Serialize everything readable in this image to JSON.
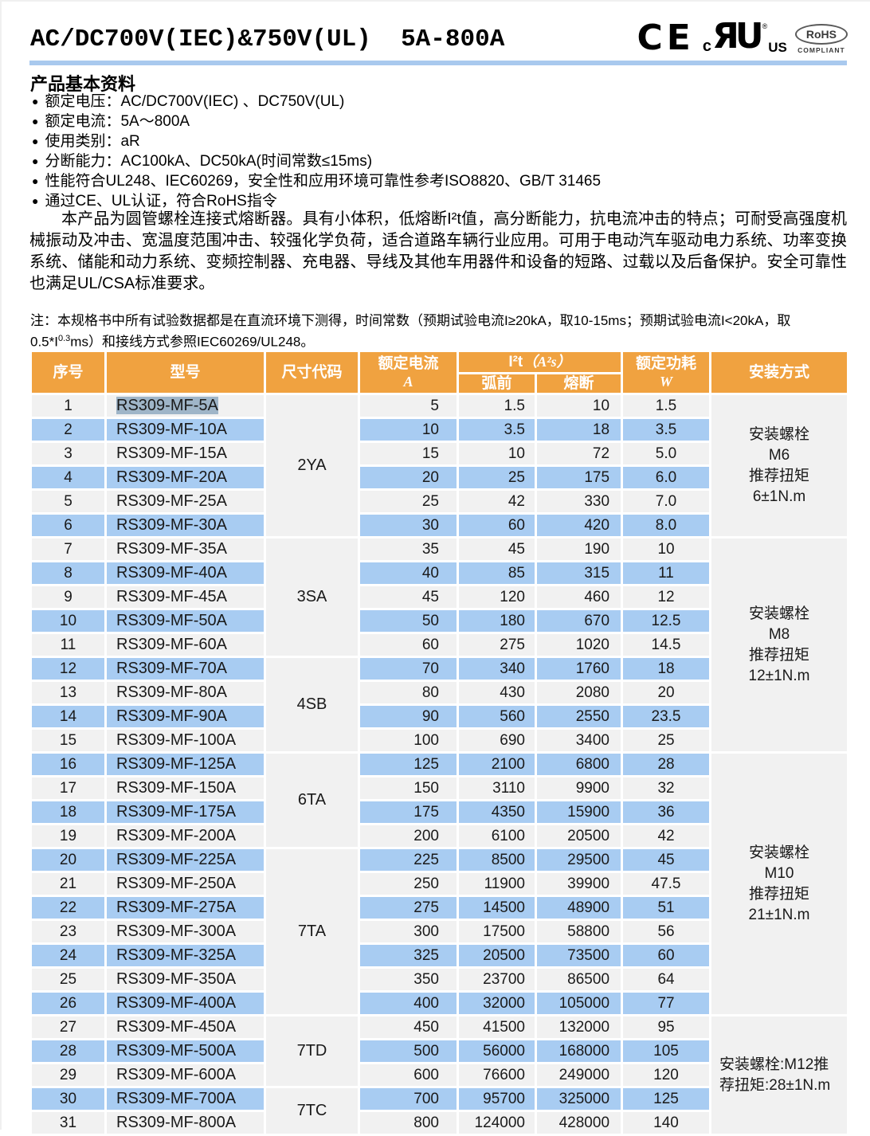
{
  "header": {
    "title": "AC/DC700V(IEC)&750V(UL)  5A-800A",
    "logos": {
      "ce": "CE",
      "cul_prefix": "c",
      "cul_mark": "ЯU",
      "cul_reg": "®",
      "cul_suffix": "US",
      "rohs": "RoHS",
      "rohs_sub": "COMPLIANT"
    }
  },
  "section": {
    "title": "产品基本资料",
    "bullet_char": "●",
    "bullets": [
      "额定电压：AC/DC700V(IEC) 、DC750V(UL)",
      "额定电流：5A～800A",
      "使用类别：aR",
      "分断能力：AC100kA、DC50kA(时间常数≤15ms)",
      "性能符合UL248、IEC60269，安全性和应用环境可靠性参考ISO8820、GB/T 31465",
      "通过CE、UL认证，符合RoHS指令"
    ],
    "paragraph": "本产品为圆管螺栓连接式熔断器。具有小体积，低熔断I²t值，高分断能力，抗电流冲击的特点；可耐受高强度机械振动及冲击、宽温度范围冲击、较强化学负荷，适合道路车辆行业应用。可用于电动汽车驱动电力系统、功率变换系统、储能和动力系统、变频控制器、充电器、导线及其他车用器件和设备的短路、过载以及后备保护。安全可靠性也满足UL/CSA标准要求。",
    "note": {
      "line1": "注：本规格书中所有试验数据都是在直流环境下测得，时间常数（预期试验电流I≥20kA，取10-15ms；预期试验电流I<20kA，取",
      "line2_pre": "0.5*I",
      "sup": "0.3",
      "line2_post": "ms）和接线方式参照IEC60269/UL248。"
    }
  },
  "table": {
    "headers": {
      "no": "序号",
      "model": "型号",
      "size": "尺寸代码",
      "current": "额定电流",
      "current_unit": "A",
      "i2t_main": "I²t",
      "i2t_unit": "（A²s）",
      "prearc": "弧前",
      "melt": "熔断",
      "power": "额定功耗",
      "power_unit": "W",
      "mount": "安装方式"
    },
    "rows": [
      {
        "no": 1,
        "model": "RS309-MF-5A",
        "highlight": true,
        "current": "5",
        "prearc": "1.5",
        "melt": "10",
        "power": "1.5"
      },
      {
        "no": 2,
        "model": "RS309-MF-10A",
        "current": "10",
        "prearc": "3.5",
        "melt": "18",
        "power": "3.5"
      },
      {
        "no": 3,
        "model": "RS309-MF-15A",
        "current": "15",
        "prearc": "10",
        "melt": "72",
        "power": "5.0"
      },
      {
        "no": 4,
        "model": "RS309-MF-20A",
        "current": "20",
        "prearc": "25",
        "melt": "175",
        "power": "6.0"
      },
      {
        "no": 5,
        "model": "RS309-MF-25A",
        "current": "25",
        "prearc": "42",
        "melt": "330",
        "power": "7.0"
      },
      {
        "no": 6,
        "model": "RS309-MF-30A",
        "current": "30",
        "prearc": "60",
        "melt": "420",
        "power": "8.0"
      },
      {
        "no": 7,
        "model": "RS309-MF-35A",
        "current": "35",
        "prearc": "45",
        "melt": "190",
        "power": "10"
      },
      {
        "no": 8,
        "model": "RS309-MF-40A",
        "current": "40",
        "prearc": "85",
        "melt": "315",
        "power": "11"
      },
      {
        "no": 9,
        "model": "RS309-MF-45A",
        "current": "45",
        "prearc": "120",
        "melt": "460",
        "power": "12"
      },
      {
        "no": 10,
        "model": "RS309-MF-50A",
        "current": "50",
        "prearc": "180",
        "melt": "670",
        "power": "12.5"
      },
      {
        "no": 11,
        "model": "RS309-MF-60A",
        "current": "60",
        "prearc": "275",
        "melt": "1020",
        "power": "14.5"
      },
      {
        "no": 12,
        "model": "RS309-MF-70A",
        "current": "70",
        "prearc": "340",
        "melt": "1760",
        "power": "18"
      },
      {
        "no": 13,
        "model": "RS309-MF-80A",
        "current": "80",
        "prearc": "430",
        "melt": "2080",
        "power": "20"
      },
      {
        "no": 14,
        "model": "RS309-MF-90A",
        "current": "90",
        "prearc": "560",
        "melt": "2550",
        "power": "23.5"
      },
      {
        "no": 15,
        "model": "RS309-MF-100A",
        "current": "100",
        "prearc": "690",
        "melt": "3400",
        "power": "25"
      },
      {
        "no": 16,
        "model": "RS309-MF-125A",
        "current": "125",
        "prearc": "2100",
        "melt": "6800",
        "power": "28"
      },
      {
        "no": 17,
        "model": "RS309-MF-150A",
        "current": "150",
        "prearc": "3110",
        "melt": "9900",
        "power": "32"
      },
      {
        "no": 18,
        "model": "RS309-MF-175A",
        "current": "175",
        "prearc": "4350",
        "melt": "15900",
        "power": "36"
      },
      {
        "no": 19,
        "model": "RS309-MF-200A",
        "current": "200",
        "prearc": "6100",
        "melt": "20500",
        "power": "42"
      },
      {
        "no": 20,
        "model": "RS309-MF-225A",
        "current": "225",
        "prearc": "8500",
        "melt": "29500",
        "power": "45"
      },
      {
        "no": 21,
        "model": "RS309-MF-250A",
        "current": "250",
        "prearc": "11900",
        "melt": "39900",
        "power": "47.5"
      },
      {
        "no": 22,
        "model": "RS309-MF-275A",
        "current": "275",
        "prearc": "14500",
        "melt": "48900",
        "power": "51"
      },
      {
        "no": 23,
        "model": "RS309-MF-300A",
        "current": "300",
        "prearc": "17500",
        "melt": "58800",
        "power": "56"
      },
      {
        "no": 24,
        "model": "RS309-MF-325A",
        "current": "325",
        "prearc": "20500",
        "melt": "73500",
        "power": "60"
      },
      {
        "no": 25,
        "model": "RS309-MF-350A",
        "current": "350",
        "prearc": "23700",
        "melt": "86500",
        "power": "64"
      },
      {
        "no": 26,
        "model": "RS309-MF-400A",
        "current": "400",
        "prearc": "32000",
        "melt": "105000",
        "power": "77"
      },
      {
        "no": 27,
        "model": "RS309-MF-450A",
        "current": "450",
        "prearc": "41500",
        "melt": "132000",
        "power": "95"
      },
      {
        "no": 28,
        "model": "RS309-MF-500A",
        "current": "500",
        "prearc": "56000",
        "melt": "168000",
        "power": "105"
      },
      {
        "no": 29,
        "model": "RS309-MF-600A",
        "current": "600",
        "prearc": "76600",
        "melt": "249000",
        "power": "120"
      },
      {
        "no": 30,
        "model": "RS309-MF-700A",
        "current": "700",
        "prearc": "95700",
        "melt": "325000",
        "power": "125"
      },
      {
        "no": 31,
        "model": "RS309-MF-800A",
        "current": "800",
        "prearc": "124000",
        "melt": "428000",
        "power": "140"
      }
    ],
    "size_groups": [
      {
        "label": "2YA",
        "start": 0,
        "span": 6
      },
      {
        "label": "3SA",
        "start": 6,
        "span": 5
      },
      {
        "label": "4SB",
        "start": 11,
        "span": 4
      },
      {
        "label": "6TA",
        "start": 15,
        "span": 4
      },
      {
        "label": "7TA",
        "start": 19,
        "span": 7
      },
      {
        "label": "7TD",
        "start": 26,
        "span": 3
      },
      {
        "label": "7TC",
        "start": 29,
        "span": 2
      }
    ],
    "mount_groups": [
      {
        "lines": [
          "安装螺栓",
          "M6",
          "推荐扭矩",
          "6±1N.m"
        ],
        "start": 0,
        "span": 6,
        "align": "center"
      },
      {
        "lines": [
          "安装螺栓",
          "M8",
          "推荐扭矩",
          "12±1N.m"
        ],
        "start": 6,
        "span": 9,
        "align": "center"
      },
      {
        "lines": [
          "安装螺栓",
          "M10",
          "推荐扭矩",
          "21±1N.m"
        ],
        "start": 15,
        "span": 11,
        "align": "center"
      },
      {
        "lines": [
          "安装螺栓:M12推",
          "荐扭矩:28±1N.m"
        ],
        "start": 26,
        "span": 5,
        "align": "left"
      }
    ]
  },
  "colors": {
    "header_orange": "#F0A240",
    "stripe_blue": "#A8CCF2",
    "divider_blue": "#A9C9EE",
    "row_gray": "#F1F1F1",
    "selection_gray_blue": "#9FB5C8",
    "text_black": "#1A1A1A"
  }
}
